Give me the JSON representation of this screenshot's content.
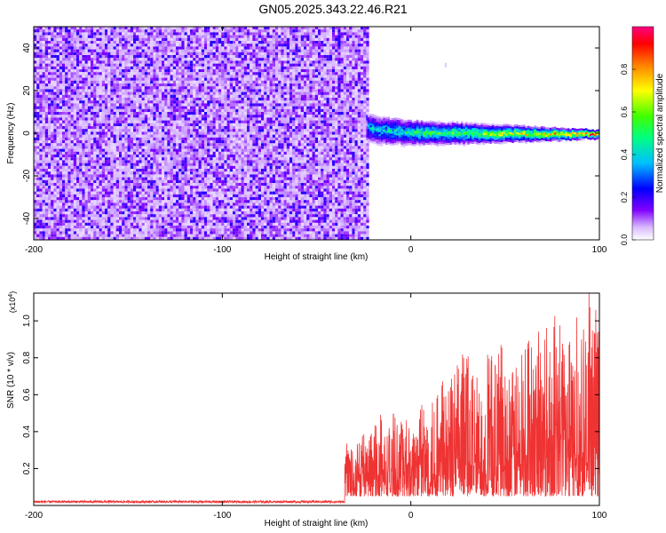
{
  "title": "GN05.2025.343.22.46.R21",
  "chart_data": [
    {
      "type": "heatmap",
      "xlabel": "Height of straight line (km)",
      "ylabel": "Frequency (Hz)",
      "xlim": [
        -200,
        100
      ],
      "ylim": [
        -50,
        50
      ],
      "xticks": [
        -200,
        -100,
        0,
        100
      ],
      "yticks": [
        -40,
        -20,
        0,
        20,
        40
      ],
      "colorbar": {
        "label": "Normalized spectral amplitude",
        "range": [
          0,
          1
        ],
        "ticks": [
          0.0,
          0.2,
          0.4,
          0.6,
          0.8
        ],
        "tick_labels": [
          "0.0",
          "0.2",
          "0.4",
          "0.6",
          "0.8"
        ],
        "colors": [
          "#ffffff",
          "#d8b8ff",
          "#8000ff",
          "#0000ff",
          "#00c0ff",
          "#00ff80",
          "#40ff00",
          "#ffff00",
          "#ff8000",
          "#ff0000",
          "#ff0080"
        ]
      },
      "noise_region": {
        "x_range": [
          -200,
          -23
        ],
        "amplitude": [
          0.02,
          0.25
        ]
      },
      "signal_band": {
        "x_range": [
          -23,
          100
        ],
        "center_freq": 0,
        "amplitude_start": 0.4,
        "amplitude_end": 0.9
      }
    },
    {
      "type": "line",
      "xlabel": "Height of straight line (km)",
      "ylabel": "SNR (10 * v/v)",
      "y_multiplier": "(x10^4)",
      "xlim": [
        -200,
        100
      ],
      "ylim": [
        0,
        1.15
      ],
      "xticks": [
        -200,
        -100,
        0,
        100
      ],
      "yticks": [
        0.2,
        0.4,
        0.6,
        0.8,
        1.0
      ],
      "ytick_labels": [
        "0.2",
        "0.4",
        "0.6",
        "0.8",
        "1.0"
      ],
      "color": "#ef3333",
      "noise_floor": 0.02,
      "onset_x": -35,
      "envelope": [
        {
          "x": -35,
          "y": 0.28
        },
        {
          "x": -20,
          "y": 0.45
        },
        {
          "x": 0,
          "y": 0.55
        },
        {
          "x": 30,
          "y": 0.85
        },
        {
          "x": 60,
          "y": 0.9
        },
        {
          "x": 95,
          "y": 1.15
        }
      ]
    }
  ],
  "labels": {
    "y_multiplier_base": "(x10",
    "y_multiplier_exp": "4",
    "y_multiplier_close": ")"
  }
}
